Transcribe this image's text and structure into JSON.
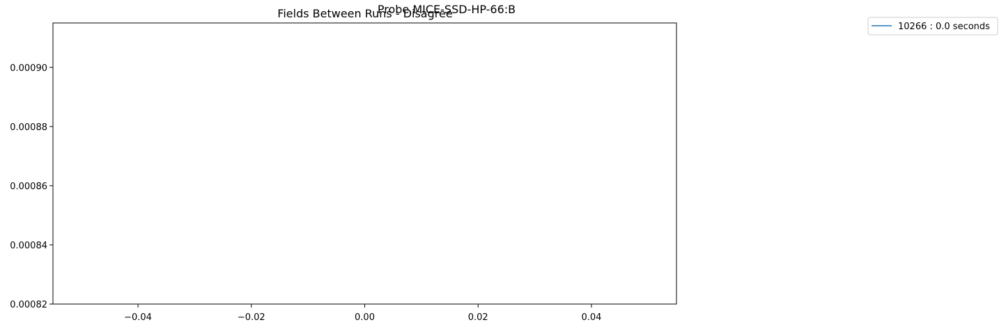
{
  "figure": {
    "suptitle": "Probe MICE-SSD-HP-66:B"
  },
  "chart_data": {
    "type": "line",
    "title": "Fields Between Runs - Disagree",
    "xlabel": "",
    "ylabel": "",
    "xlim": [
      -0.055,
      0.055
    ],
    "ylim": [
      0.00082,
      0.000915
    ],
    "x_ticks": [
      -0.04,
      -0.02,
      0.0,
      0.02,
      0.04
    ],
    "x_tick_labels": [
      "−0.04",
      "−0.02",
      "0.00",
      "0.02",
      "0.04"
    ],
    "y_ticks": [
      0.00082,
      0.00084,
      0.00086,
      0.00088,
      0.0009
    ],
    "y_tick_labels": [
      "0.00082",
      "0.00084",
      "0.00086",
      "0.00088",
      "0.00090"
    ],
    "grid": false,
    "legend_position": "outside-top-right",
    "series": [
      {
        "name": "10266 : 0.0 seconds",
        "color": "#1f77b4",
        "x": [],
        "y": []
      }
    ]
  }
}
